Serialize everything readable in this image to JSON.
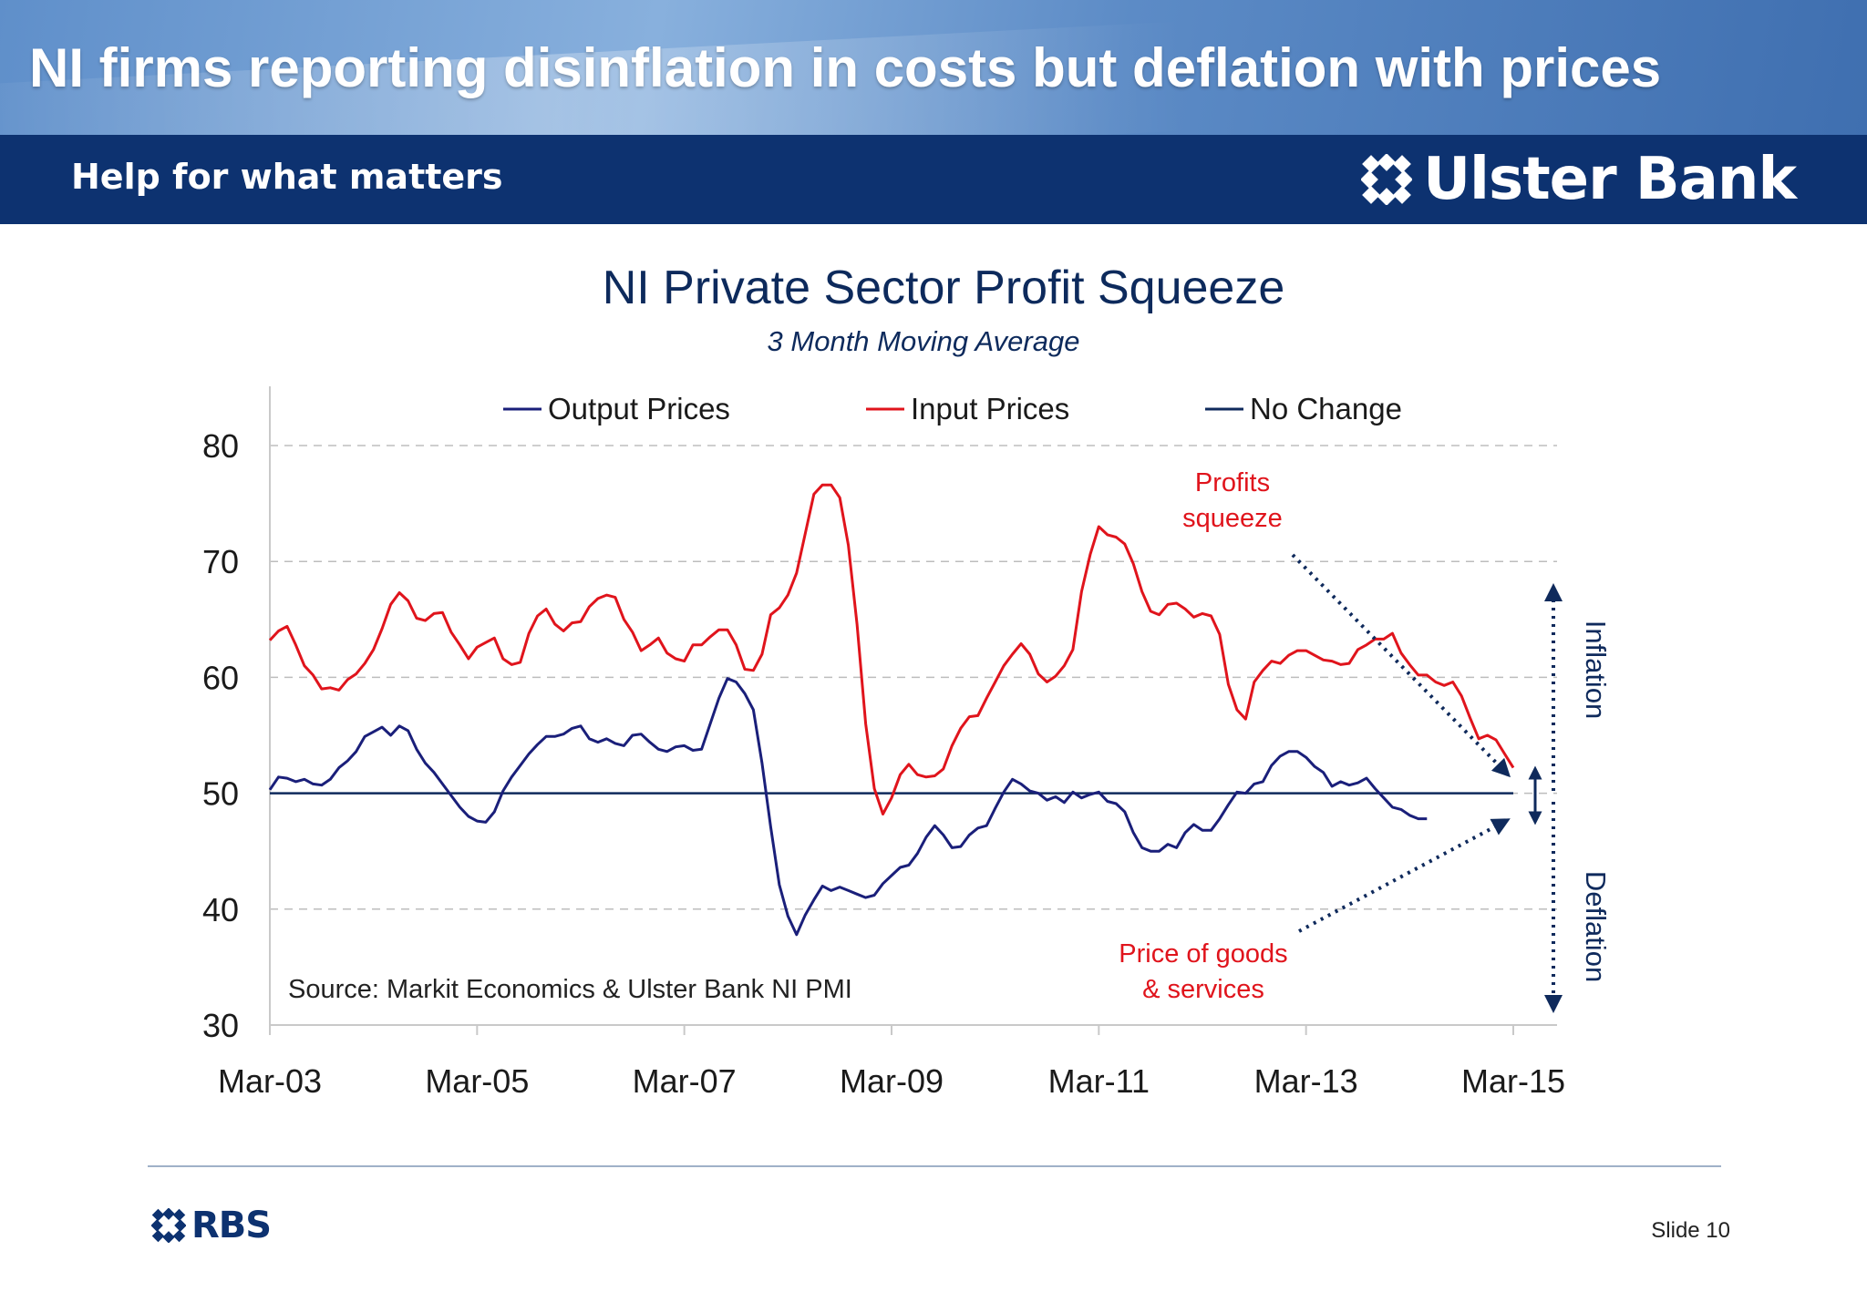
{
  "slide": {
    "title": "NI firms reporting disinflation in costs but deflation with prices",
    "tagline": "Help for what matters",
    "brand_name": "Ulster Bank",
    "footer_brand": "RBS",
    "slide_number": "Slide 10",
    "colors": {
      "banner": "#6e9ad2",
      "brand_bar": "#0d3270",
      "logo": "#ffffff",
      "footer_logo": "#0d3270"
    }
  },
  "chart_data": {
    "type": "line",
    "title": "NI Private Sector Profit Squeeze",
    "subtitle": "3 Month Moving Average",
    "xlabel": "",
    "ylabel": "",
    "ylim": [
      30,
      80
    ],
    "yticks": [
      30,
      40,
      50,
      60,
      70,
      80
    ],
    "x_tick_labels": [
      "Mar-03",
      "Mar-05",
      "Mar-07",
      "Mar-09",
      "Mar-11",
      "Mar-13",
      "Mar-15"
    ],
    "x_start": "Mar-03",
    "x_end": "Mar-15",
    "grid": "horizontal-dashed",
    "legend_position": "top",
    "source_note": "Source: Markit Economics & Ulster Bank NI PMI",
    "series": [
      {
        "name": "Output Prices",
        "color": "#1a1f7a",
        "points": [
          [
            "Mar-03",
            50.3
          ],
          [
            "Apr-03",
            51.4
          ],
          [
            "May-03",
            51.3
          ],
          [
            "Jun-03",
            51.0
          ],
          [
            "Jul-03",
            51.2
          ],
          [
            "Aug-03",
            50.8
          ],
          [
            "Sep-03",
            50.7
          ],
          [
            "Oct-03",
            51.2
          ],
          [
            "Nov-03",
            52.2
          ],
          [
            "Dec-03",
            52.8
          ],
          [
            "Jan-04",
            53.6
          ],
          [
            "Feb-04",
            54.9
          ],
          [
            "Mar-04",
            55.3
          ],
          [
            "Apr-04",
            55.7
          ],
          [
            "May-04",
            55.0
          ],
          [
            "Jun-04",
            55.8
          ],
          [
            "Jul-04",
            55.4
          ],
          [
            "Aug-04",
            53.8
          ],
          [
            "Sep-04",
            52.6
          ],
          [
            "Oct-04",
            51.8
          ],
          [
            "Nov-04",
            50.8
          ],
          [
            "Dec-04",
            49.8
          ],
          [
            "Jan-05",
            48.8
          ],
          [
            "Feb-05",
            48.0
          ],
          [
            "Mar-05",
            47.6
          ],
          [
            "Apr-05",
            47.5
          ],
          [
            "May-05",
            48.4
          ],
          [
            "Jun-05",
            50.2
          ],
          [
            "Jul-05",
            51.4
          ],
          [
            "Aug-05",
            52.4
          ],
          [
            "Sep-05",
            53.4
          ],
          [
            "Oct-05",
            54.2
          ],
          [
            "Nov-05",
            54.9
          ],
          [
            "Dec-05",
            54.9
          ],
          [
            "Jan-06",
            55.1
          ],
          [
            "Feb-06",
            55.6
          ],
          [
            "Mar-06",
            55.8
          ],
          [
            "Apr-06",
            54.7
          ],
          [
            "May-06",
            54.4
          ],
          [
            "Jun-06",
            54.7
          ],
          [
            "Jul-06",
            54.3
          ],
          [
            "Aug-06",
            54.1
          ],
          [
            "Sep-06",
            55.0
          ],
          [
            "Oct-06",
            55.1
          ],
          [
            "Nov-06",
            54.4
          ],
          [
            "Dec-06",
            53.8
          ],
          [
            "Jan-07",
            53.6
          ],
          [
            "Feb-07",
            54.0
          ],
          [
            "Mar-07",
            54.1
          ],
          [
            "Apr-07",
            53.7
          ],
          [
            "May-07",
            53.8
          ],
          [
            "Jun-07",
            56.0
          ],
          [
            "Jul-07",
            58.2
          ],
          [
            "Aug-07",
            59.9
          ],
          [
            "Sep-07",
            59.6
          ],
          [
            "Oct-07",
            58.6
          ],
          [
            "Nov-07",
            57.2
          ],
          [
            "Dec-07",
            52.6
          ],
          [
            "Jan-08",
            47.1
          ],
          [
            "Feb-08",
            42.1
          ],
          [
            "Mar-08",
            39.4
          ],
          [
            "Apr-08",
            37.8
          ],
          [
            "May-08",
            39.5
          ],
          [
            "Jun-08",
            40.8
          ],
          [
            "Jul-08",
            42.0
          ],
          [
            "Aug-08",
            41.6
          ],
          [
            "Sep-08",
            41.9
          ],
          [
            "Oct-08",
            41.6
          ],
          [
            "Nov-08",
            41.3
          ],
          [
            "Dec-08",
            41.0
          ],
          [
            "Jan-09",
            41.2
          ],
          [
            "Feb-09",
            42.2
          ],
          [
            "Mar-09",
            42.9
          ],
          [
            "Apr-09",
            43.6
          ],
          [
            "May-09",
            43.8
          ],
          [
            "Jun-09",
            44.8
          ],
          [
            "Jul-09",
            46.2
          ],
          [
            "Aug-09",
            47.2
          ],
          [
            "Sep-09",
            46.4
          ],
          [
            "Oct-09",
            45.3
          ],
          [
            "Nov-09",
            45.4
          ],
          [
            "Dec-09",
            46.4
          ],
          [
            "Jan-10",
            47.0
          ],
          [
            "Feb-10",
            47.2
          ],
          [
            "Mar-10",
            48.7
          ],
          [
            "Apr-10",
            50.1
          ],
          [
            "May-10",
            51.2
          ],
          [
            "Jun-10",
            50.8
          ],
          [
            "Jul-10",
            50.2
          ],
          [
            "Aug-10",
            50.0
          ],
          [
            "Sep-10",
            49.4
          ],
          [
            "Oct-10",
            49.7
          ],
          [
            "Nov-10",
            49.2
          ],
          [
            "Dec-10",
            50.1
          ],
          [
            "Jan-11",
            49.6
          ],
          [
            "Feb-11",
            49.9
          ],
          [
            "Mar-11",
            50.1
          ],
          [
            "Apr-11",
            49.3
          ],
          [
            "May-11",
            49.1
          ],
          [
            "Jun-11",
            48.4
          ],
          [
            "Jul-11",
            46.6
          ],
          [
            "Aug-11",
            45.3
          ],
          [
            "Sep-11",
            45.0
          ],
          [
            "Oct-11",
            45.0
          ],
          [
            "Nov-11",
            45.6
          ],
          [
            "Dec-11",
            45.3
          ],
          [
            "Jan-12",
            46.6
          ],
          [
            "Feb-12",
            47.3
          ],
          [
            "Mar-12",
            46.8
          ],
          [
            "Apr-12",
            46.8
          ],
          [
            "May-12",
            47.8
          ],
          [
            "Jun-12",
            49.0
          ],
          [
            "Jul-12",
            50.1
          ],
          [
            "Aug-12",
            50.0
          ],
          [
            "Sep-12",
            50.8
          ],
          [
            "Oct-12",
            51.0
          ],
          [
            "Nov-12",
            52.4
          ],
          [
            "Dec-12",
            53.2
          ],
          [
            "Jan-13",
            53.6
          ],
          [
            "Feb-13",
            53.6
          ],
          [
            "Mar-13",
            53.1
          ],
          [
            "Apr-13",
            52.3
          ],
          [
            "May-13",
            51.8
          ],
          [
            "Jun-13",
            50.6
          ],
          [
            "Jul-13",
            51.0
          ],
          [
            "Aug-13",
            50.7
          ],
          [
            "Sep-13",
            50.9
          ],
          [
            "Oct-13",
            51.3
          ],
          [
            "Nov-13",
            50.4
          ],
          [
            "Dec-13",
            49.6
          ],
          [
            "Jan-14",
            48.8
          ],
          [
            "Feb-14",
            48.6
          ],
          [
            "Mar-14",
            48.1
          ],
          [
            "Apr-14",
            47.8
          ],
          [
            "May-14",
            47.8
          ]
        ]
      },
      {
        "name": "Input Prices",
        "color": "#e0141c",
        "points": [
          [
            "Mar-03",
            63.2
          ],
          [
            "Apr-03",
            64.0
          ],
          [
            "May-03",
            64.4
          ],
          [
            "Jun-03",
            62.8
          ],
          [
            "Jul-03",
            61.0
          ],
          [
            "Aug-03",
            60.2
          ],
          [
            "Sep-03",
            59.0
          ],
          [
            "Oct-03",
            59.1
          ],
          [
            "Nov-03",
            58.9
          ],
          [
            "Dec-03",
            59.8
          ],
          [
            "Jan-04",
            60.3
          ],
          [
            "Feb-04",
            61.2
          ],
          [
            "Mar-04",
            62.4
          ],
          [
            "Apr-04",
            64.2
          ],
          [
            "May-04",
            66.3
          ],
          [
            "Jun-04",
            67.3
          ],
          [
            "Jul-04",
            66.6
          ],
          [
            "Aug-04",
            65.1
          ],
          [
            "Sep-04",
            64.9
          ],
          [
            "Oct-04",
            65.5
          ],
          [
            "Nov-04",
            65.6
          ],
          [
            "Dec-04",
            63.9
          ],
          [
            "Jan-05",
            62.8
          ],
          [
            "Feb-05",
            61.6
          ],
          [
            "Mar-05",
            62.6
          ],
          [
            "Apr-05",
            63.0
          ],
          [
            "May-05",
            63.4
          ],
          [
            "Jun-05",
            61.6
          ],
          [
            "Jul-05",
            61.1
          ],
          [
            "Aug-05",
            61.3
          ],
          [
            "Sep-05",
            63.8
          ],
          [
            "Oct-05",
            65.3
          ],
          [
            "Nov-05",
            65.9
          ],
          [
            "Dec-05",
            64.6
          ],
          [
            "Jan-06",
            64.0
          ],
          [
            "Feb-06",
            64.7
          ],
          [
            "Mar-06",
            64.8
          ],
          [
            "Apr-06",
            66.1
          ],
          [
            "May-06",
            66.8
          ],
          [
            "Jun-06",
            67.1
          ],
          [
            "Jul-06",
            66.9
          ],
          [
            "Aug-06",
            65.0
          ],
          [
            "Sep-06",
            63.9
          ],
          [
            "Oct-06",
            62.3
          ],
          [
            "Nov-06",
            62.8
          ],
          [
            "Dec-06",
            63.4
          ],
          [
            "Jan-07",
            62.1
          ],
          [
            "Feb-07",
            61.6
          ],
          [
            "Mar-07",
            61.4
          ],
          [
            "Apr-07",
            62.8
          ],
          [
            "May-07",
            62.8
          ],
          [
            "Jun-07",
            63.5
          ],
          [
            "Jul-07",
            64.1
          ],
          [
            "Aug-07",
            64.1
          ],
          [
            "Sep-07",
            62.8
          ],
          [
            "Oct-07",
            60.7
          ],
          [
            "Nov-07",
            60.6
          ],
          [
            "Dec-07",
            62.0
          ],
          [
            "Jan-08",
            65.4
          ],
          [
            "Feb-08",
            66.0
          ],
          [
            "Mar-08",
            67.1
          ],
          [
            "Apr-08",
            69.0
          ],
          [
            "May-08",
            72.4
          ],
          [
            "Jun-08",
            75.8
          ],
          [
            "Jul-08",
            76.6
          ],
          [
            "Aug-08",
            76.6
          ],
          [
            "Sep-08",
            75.5
          ],
          [
            "Oct-08",
            71.4
          ],
          [
            "Nov-08",
            64.6
          ],
          [
            "Dec-08",
            56.0
          ],
          [
            "Jan-09",
            50.4
          ],
          [
            "Feb-09",
            48.2
          ],
          [
            "Mar-09",
            49.6
          ],
          [
            "Apr-09",
            51.6
          ],
          [
            "May-09",
            52.5
          ],
          [
            "Jun-09",
            51.6
          ],
          [
            "Jul-09",
            51.4
          ],
          [
            "Aug-09",
            51.5
          ],
          [
            "Sep-09",
            52.1
          ],
          [
            "Oct-09",
            54.1
          ],
          [
            "Nov-09",
            55.6
          ],
          [
            "Dec-09",
            56.6
          ],
          [
            "Jan-10",
            56.7
          ],
          [
            "Feb-10",
            58.2
          ],
          [
            "Mar-10",
            59.6
          ],
          [
            "Apr-10",
            61.0
          ],
          [
            "May-10",
            62.0
          ],
          [
            "Jun-10",
            62.9
          ],
          [
            "Jul-10",
            62.0
          ],
          [
            "Aug-10",
            60.3
          ],
          [
            "Sep-10",
            59.6
          ],
          [
            "Oct-10",
            60.1
          ],
          [
            "Nov-10",
            61.0
          ],
          [
            "Dec-10",
            62.4
          ],
          [
            "Jan-11",
            67.4
          ],
          [
            "Feb-11",
            70.6
          ],
          [
            "Mar-11",
            73.0
          ],
          [
            "Apr-11",
            72.3
          ],
          [
            "May-11",
            72.1
          ],
          [
            "Jun-11",
            71.5
          ],
          [
            "Jul-11",
            69.8
          ],
          [
            "Aug-11",
            67.4
          ],
          [
            "Sep-11",
            65.7
          ],
          [
            "Oct-11",
            65.4
          ],
          [
            "Nov-11",
            66.3
          ],
          [
            "Dec-11",
            66.4
          ],
          [
            "Jan-12",
            65.9
          ],
          [
            "Feb-12",
            65.2
          ],
          [
            "Mar-12",
            65.5
          ],
          [
            "Apr-12",
            65.3
          ],
          [
            "May-12",
            63.7
          ],
          [
            "Jun-12",
            59.4
          ],
          [
            "Jul-12",
            57.2
          ],
          [
            "Aug-12",
            56.4
          ],
          [
            "Sep-12",
            59.6
          ],
          [
            "Oct-12",
            60.6
          ],
          [
            "Nov-12",
            61.4
          ],
          [
            "Dec-12",
            61.2
          ],
          [
            "Jan-13",
            61.9
          ],
          [
            "Feb-13",
            62.3
          ],
          [
            "Mar-13",
            62.3
          ],
          [
            "Apr-13",
            61.9
          ],
          [
            "May-13",
            61.5
          ],
          [
            "Jun-13",
            61.4
          ],
          [
            "Jul-13",
            61.1
          ],
          [
            "Aug-13",
            61.2
          ],
          [
            "Sep-13",
            62.4
          ],
          [
            "Oct-13",
            62.8
          ],
          [
            "Nov-13",
            63.3
          ],
          [
            "Dec-13",
            63.3
          ],
          [
            "Jan-14",
            63.8
          ],
          [
            "Feb-14",
            62.1
          ],
          [
            "Mar-14",
            61.1
          ],
          [
            "Apr-14",
            60.2
          ],
          [
            "May-14",
            60.2
          ],
          [
            "Jun-14",
            59.6
          ],
          [
            "Jul-14",
            59.3
          ],
          [
            "Aug-14",
            59.6
          ],
          [
            "Sep-14",
            58.4
          ],
          [
            "Oct-14",
            56.5
          ],
          [
            "Nov-14",
            54.7
          ],
          [
            "Dec-14",
            55.0
          ],
          [
            "Jan-15",
            54.6
          ],
          [
            "Feb-15",
            53.4
          ],
          [
            "Mar-15",
            52.2
          ]
        ]
      },
      {
        "name": "No Change",
        "color": "#0f2a5c",
        "points": [
          [
            "Mar-03",
            50
          ],
          [
            "Mar-15",
            50
          ]
        ]
      }
    ],
    "annotations": [
      {
        "name": "profits-squeeze",
        "text_lines": [
          "Profits",
          "squeeze"
        ],
        "color": "#e0141c"
      },
      {
        "name": "price-goods-services",
        "text_lines": [
          "Price of goods",
          "& services"
        ],
        "color": "#e0141c"
      },
      {
        "name": "inflation-label",
        "text": "Inflation",
        "color": "#0f2a5c"
      },
      {
        "name": "deflation-label",
        "text": "Deflation",
        "color": "#0f2a5c"
      }
    ]
  }
}
